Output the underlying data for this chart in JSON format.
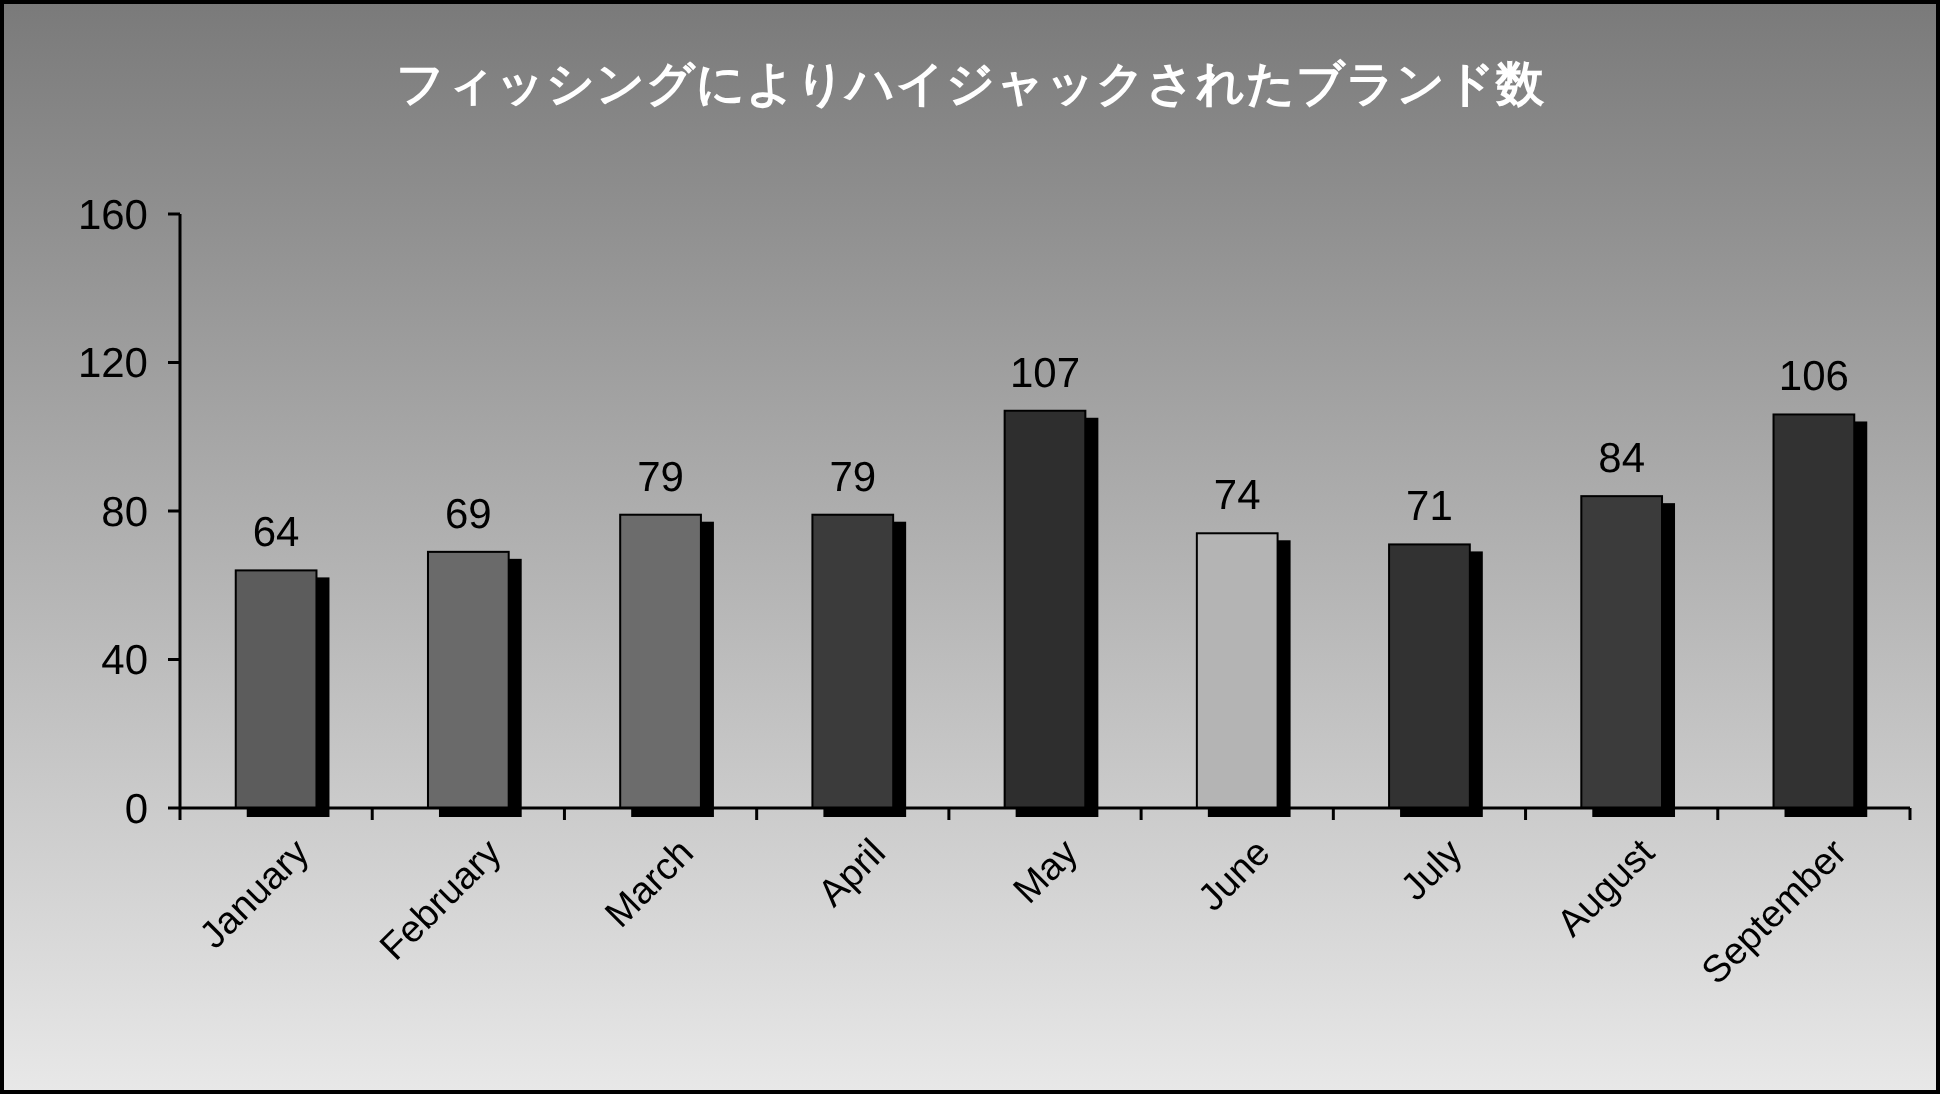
{
  "chart_data": {
    "type": "bar",
    "title": "フィッシングによりハイジャックされたブランド数",
    "categories": [
      "January",
      "February",
      "March",
      "April",
      "May",
      "June",
      "July",
      "August",
      "September"
    ],
    "values": [
      64,
      69,
      79,
      79,
      107,
      74,
      71,
      84,
      106
    ],
    "colors": [
      "#5c5c5c",
      "#6a6a6a",
      "#6c6c6c",
      "#3a3a3a",
      "#2e2e2e",
      "#b4b4b4",
      "#333333",
      "#3a3a3a",
      "#333333"
    ],
    "ylim": [
      0,
      160
    ],
    "yticks": [
      0,
      40,
      80,
      120,
      160
    ],
    "grid": false,
    "data_labels": true
  }
}
